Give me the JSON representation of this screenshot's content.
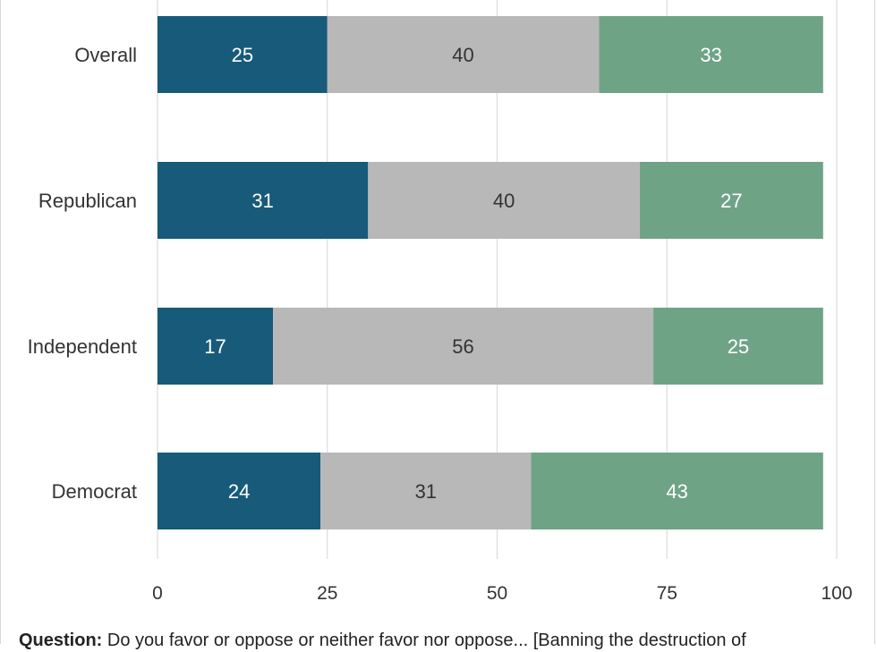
{
  "chart_data": {
    "type": "bar",
    "orientation": "horizontal",
    "stacked": true,
    "categories": [
      "Overall",
      "Republican",
      "Independent",
      "Democrat"
    ],
    "series": [
      {
        "values": [
          25,
          31,
          17,
          24
        ],
        "color": "#175a7a",
        "label_color": "#ffffff"
      },
      {
        "values": [
          40,
          40,
          56,
          31
        ],
        "color": "#b8b8b8",
        "label_color": "#333333"
      },
      {
        "values": [
          33,
          27,
          25,
          43
        ],
        "color": "#6fa386",
        "label_color": "#ffffff"
      }
    ],
    "xlim": [
      0,
      100
    ],
    "xticks": [
      0,
      25,
      50,
      75,
      100
    ],
    "grid": true,
    "legend": "none"
  },
  "caption": {
    "lead": "Question:",
    "text": "Do you favor or oppose or neither favor nor oppose... [Banning the destruction of"
  }
}
